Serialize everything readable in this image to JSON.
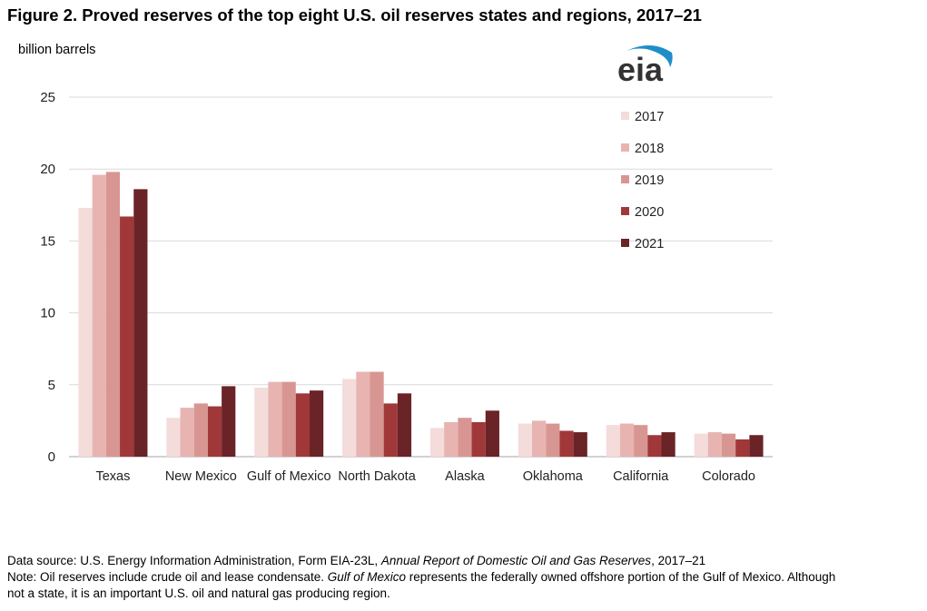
{
  "chart_data": {
    "type": "bar",
    "title": "Figure 2. Proved reserves of the top eight U.S. oil reserves states and regions, 2017–21",
    "ylabel": "billion barrels",
    "xlabel": "",
    "ylim": [
      0,
      25
    ],
    "yticks": [
      "0",
      "5",
      "10",
      "15",
      "20",
      "25"
    ],
    "grid": true,
    "legend_position": "top-right",
    "categories": [
      "Texas",
      "New Mexico",
      "Gulf of Mexico",
      "North Dakota",
      "Alaska",
      "Oklahoma",
      "California",
      "Colorado"
    ],
    "series": [
      {
        "name": "2017",
        "color": "#f4dcdb",
        "values": [
          17.3,
          2.7,
          4.8,
          5.4,
          2.0,
          2.3,
          2.2,
          1.6
        ]
      },
      {
        "name": "2018",
        "color": "#e7b4b1",
        "values": [
          19.6,
          3.4,
          5.2,
          5.9,
          2.4,
          2.5,
          2.3,
          1.7
        ]
      },
      {
        "name": "2019",
        "color": "#d89692",
        "values": [
          19.8,
          3.7,
          5.2,
          5.9,
          2.7,
          2.3,
          2.2,
          1.6
        ]
      },
      {
        "name": "2020",
        "color": "#a0383a",
        "values": [
          16.7,
          3.5,
          4.4,
          3.7,
          2.4,
          1.8,
          1.5,
          1.2
        ]
      },
      {
        "name": "2021",
        "color": "#6a2326",
        "values": [
          18.6,
          4.9,
          4.6,
          4.4,
          3.2,
          1.7,
          1.7,
          1.5
        ]
      }
    ]
  },
  "logo": {
    "text": "eia",
    "arc_color": "#1f8ec8",
    "text_color": "#333333"
  },
  "footer": {
    "source_prefix": "Data source: U.S. Energy Information Administration, Form EIA-23L, ",
    "source_italic": "Annual Report of Domestic Oil and Gas Reserves",
    "source_suffix": ", 2017–21",
    "note_prefix": "Note: Oil reserves include crude oil and lease condensate. ",
    "note_italic": "Gulf of Mexico",
    "note_suffix_line1": " represents the federally owned offshore portion of the Gulf of Mexico. Although",
    "note_line2": "not a state, it is an important U.S. oil and natural gas producing region."
  }
}
